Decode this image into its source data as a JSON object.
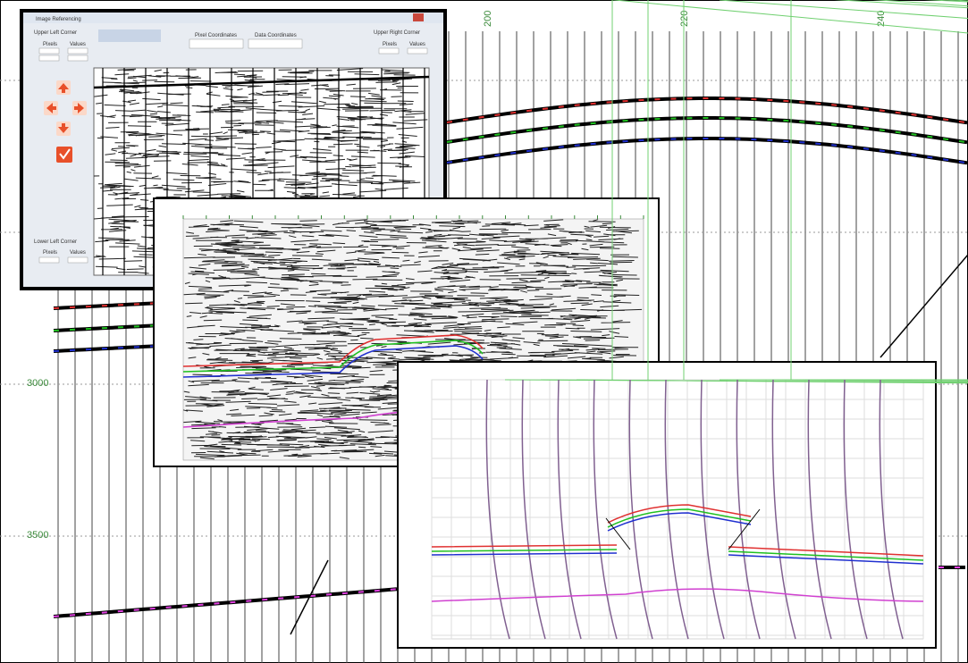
{
  "background": {
    "x_axis_labels": [
      "200",
      "220",
      "240"
    ],
    "y_axis_labels": [
      "3000",
      "3500"
    ]
  },
  "dialog": {
    "title": "Image Referencing",
    "upper_left": "Upper Left Corner",
    "upper_right": "Upper Right Corner",
    "lower_left": "Lower Left Corner",
    "pixel_coordinates": "Pixel Coordinates",
    "data_coordinates": "Data Coordinates",
    "pixels": "Pixels",
    "values": "Values"
  }
}
